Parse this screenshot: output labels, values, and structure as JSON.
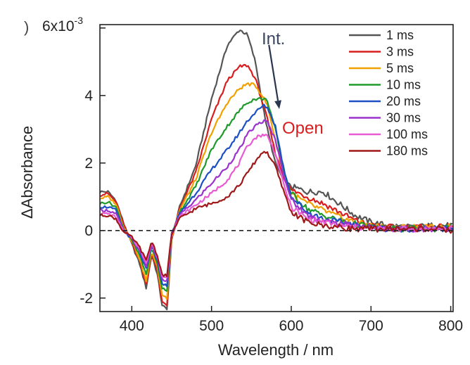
{
  "chart_data": {
    "type": "line",
    "title": "",
    "xlabel": "Wavelength  / nm",
    "ylabel": "ΔAbsorbance",
    "xlim": [
      360,
      803
    ],
    "ylim": [
      -2.4,
      6.1
    ],
    "y_axis_exponent": {
      "base": "6x10",
      "exp": "-3"
    },
    "x_ticks": [
      400,
      500,
      600,
      700,
      800
    ],
    "y_ticks": [
      -2,
      0,
      2,
      4
    ],
    "x_tick_labels": [
      "400",
      "500",
      "600",
      "700",
      "800"
    ],
    "y_tick_labels": [
      "-2",
      "0",
      "2",
      "4"
    ],
    "zero_line": true,
    "grid": false,
    "legend_position": "top-right",
    "annotations": {
      "int": {
        "text": "Int.",
        "color": "#3a4660",
        "arrow_from": [
          572,
          5.5
        ],
        "arrow_to": [
          585,
          3.6
        ]
      },
      "open": {
        "text": "Open",
        "color": "#d81e1e"
      },
      "corner_mark": ")"
    },
    "anchors_x": [
      360,
      370,
      380,
      390,
      400,
      410,
      418,
      425,
      432,
      438,
      444,
      450,
      460,
      480,
      500,
      520,
      535,
      545,
      555,
      565,
      570,
      580,
      590,
      600,
      620,
      640,
      660,
      680,
      700,
      720,
      750,
      780,
      803
    ],
    "series": [
      {
        "name": "1 ms",
        "color": "#555555",
        "values": [
          1.15,
          1.15,
          0.9,
          0.2,
          -0.4,
          -1.0,
          -1.7,
          -0.7,
          -1.3,
          -2.2,
          -2.35,
          -0.3,
          0.7,
          1.9,
          3.9,
          5.5,
          5.95,
          5.8,
          5.0,
          3.6,
          3.0,
          2.0,
          1.5,
          1.3,
          1.15,
          1.15,
          0.8,
          0.45,
          0.25,
          0.15,
          0.1,
          0.15,
          0.15
        ]
      },
      {
        "name": "3 ms",
        "color": "#d81e1e",
        "values": [
          1.05,
          1.1,
          0.85,
          0.15,
          -0.35,
          -0.9,
          -1.6,
          -0.65,
          -1.2,
          -2.1,
          -2.2,
          -0.25,
          0.65,
          1.7,
          3.3,
          4.45,
          4.85,
          4.9,
          4.5,
          3.7,
          3.3,
          2.3,
          1.6,
          1.2,
          1.0,
          0.8,
          0.55,
          0.3,
          0.15,
          0.1,
          0.1,
          0.1,
          0.1
        ]
      },
      {
        "name": "5 ms",
        "color": "#f0a000",
        "values": [
          0.95,
          1.0,
          0.8,
          0.1,
          -0.3,
          -0.85,
          -1.5,
          -0.6,
          -1.1,
          -1.9,
          -2.0,
          -0.2,
          0.6,
          1.5,
          2.9,
          3.8,
          4.2,
          4.35,
          4.3,
          3.95,
          3.7,
          2.7,
          1.7,
          1.1,
          0.8,
          0.6,
          0.4,
          0.25,
          0.15,
          0.1,
          0.1,
          0.1,
          0.1
        ]
      },
      {
        "name": "10 ms",
        "color": "#1f9a2a",
        "values": [
          0.8,
          0.85,
          0.7,
          0.05,
          -0.3,
          -0.75,
          -1.3,
          -0.5,
          -1.0,
          -1.7,
          -1.8,
          -0.15,
          0.55,
          1.3,
          2.4,
          3.1,
          3.55,
          3.8,
          3.9,
          3.9,
          3.85,
          3.0,
          1.8,
          1.1,
          0.65,
          0.45,
          0.3,
          0.2,
          0.1,
          0.05,
          0.05,
          0.05,
          0.1
        ]
      },
      {
        "name": "20 ms",
        "color": "#1b4fc4",
        "values": [
          0.7,
          0.7,
          0.6,
          0.0,
          -0.25,
          -0.65,
          -1.15,
          -0.45,
          -0.9,
          -1.55,
          -1.65,
          -0.1,
          0.5,
          1.1,
          1.8,
          2.4,
          2.9,
          3.25,
          3.5,
          3.7,
          3.65,
          3.1,
          1.9,
          1.0,
          0.55,
          0.35,
          0.25,
          0.15,
          0.1,
          0.05,
          0.05,
          0.05,
          0.05
        ]
      },
      {
        "name": "30 ms",
        "color": "#9b32cc",
        "values": [
          0.6,
          0.6,
          0.5,
          0.0,
          -0.25,
          -0.6,
          -1.05,
          -0.4,
          -0.85,
          -1.45,
          -1.5,
          -0.1,
          0.45,
          0.9,
          1.4,
          1.9,
          2.4,
          2.85,
          3.1,
          3.25,
          3.2,
          2.7,
          1.7,
          0.9,
          0.45,
          0.3,
          0.2,
          0.15,
          0.1,
          0.05,
          0.05,
          0.05,
          0.05
        ]
      },
      {
        "name": "100 ms",
        "color": "#e85ad2",
        "values": [
          0.5,
          0.5,
          0.4,
          -0.05,
          -0.2,
          -0.55,
          -0.95,
          -0.35,
          -0.8,
          -1.35,
          -1.4,
          -0.1,
          0.4,
          0.75,
          1.1,
          1.5,
          2.0,
          2.5,
          2.75,
          2.85,
          2.8,
          2.3,
          1.4,
          0.7,
          0.35,
          0.25,
          0.15,
          0.1,
          0.05,
          0.05,
          0.05,
          0.05,
          0.05
        ]
      },
      {
        "name": "180 ms",
        "color": "#a01818",
        "values": [
          0.45,
          0.45,
          0.35,
          -0.05,
          -0.2,
          -0.5,
          -0.9,
          -0.3,
          -0.75,
          -1.3,
          -1.35,
          -0.1,
          0.35,
          0.65,
          0.8,
          1.0,
          1.35,
          1.7,
          2.05,
          2.35,
          2.3,
          1.9,
          1.2,
          0.55,
          0.25,
          0.15,
          0.1,
          0.05,
          0.05,
          0.05,
          0.05,
          0.05,
          0.0
        ]
      }
    ]
  }
}
